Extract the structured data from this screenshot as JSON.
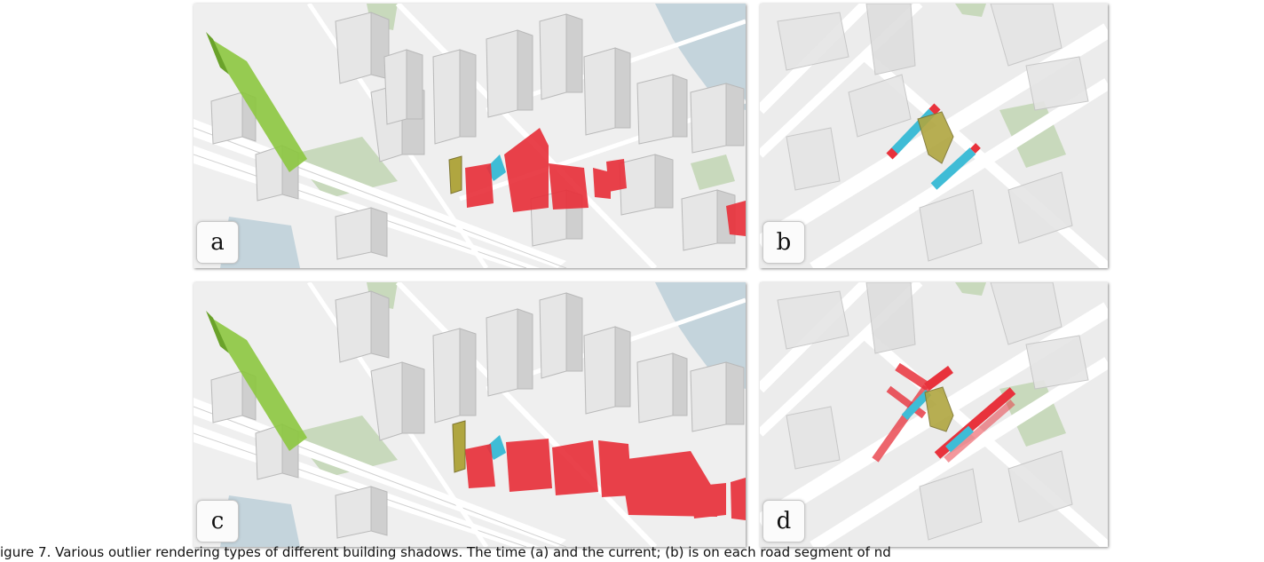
{
  "panels": [
    {
      "id": "a",
      "label": "a"
    },
    {
      "id": "b",
      "label": "b"
    },
    {
      "id": "c",
      "label": "c"
    },
    {
      "id": "d",
      "label": "d"
    }
  ],
  "caption": "igure 7. Various outlier rendering types of different building shadows. The time (a) and the current; (b) is on each road segment of nd",
  "colors": {
    "landmark_green": "#8cc63f",
    "shadow_red": "#e8323c",
    "highlight_cyan": "#3fbcd6",
    "target_olive": "#b0a640",
    "water": "#c4d4dc",
    "park": "#c8d9bc",
    "building": "#e4e4e4",
    "ground": "#eeeeee"
  },
  "icons": [
    "building-icon",
    "road-icon",
    "water-icon"
  ]
}
